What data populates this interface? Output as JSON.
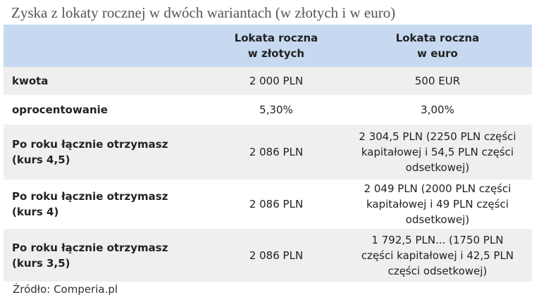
{
  "title": "Zyska z lokaty rocznej w dwóch wariantach (w złotych i w euro)",
  "table": {
    "header": [
      [
        "Lokata roczna",
        "w złotych"
      ],
      [
        "Lokata roczna",
        "w euro"
      ]
    ],
    "rows": [
      [
        [
          "kwota"
        ],
        [
          "2 000 PLN"
        ],
        [
          "500 EUR"
        ]
      ],
      [
        [
          "oprocentowanie"
        ],
        [
          "5,30%"
        ],
        [
          "3,00%"
        ]
      ],
      [
        [
          "Po roku łącznie otrzymasz",
          "(kurs 4,5)"
        ],
        [
          "2 086 PLN"
        ],
        [
          "2 304,5 PLN (2250 PLN części",
          "kapitałowej i 54,5 PLN części",
          "odsetkowej)"
        ]
      ],
      [
        [
          "Po roku łącznie otrzymasz",
          "(kurs 4)"
        ],
        [
          "2 086 PLN"
        ],
        [
          "2 049 PLN (2000 PLN części",
          "kapitałowej i 49 PLN części",
          "odsetkowej)"
        ]
      ],
      [
        [
          "Po roku łącznie otrzymasz",
          "(kurs 3,5)"
        ],
        [
          "2 086 PLN"
        ],
        [
          "1 792,5 PLN... (1750 PLN",
          "części kapitałowej i 42,5 PLN",
          "części odsetkowej)"
        ]
      ]
    ]
  },
  "source": "Źródło: Comperia.pl"
}
